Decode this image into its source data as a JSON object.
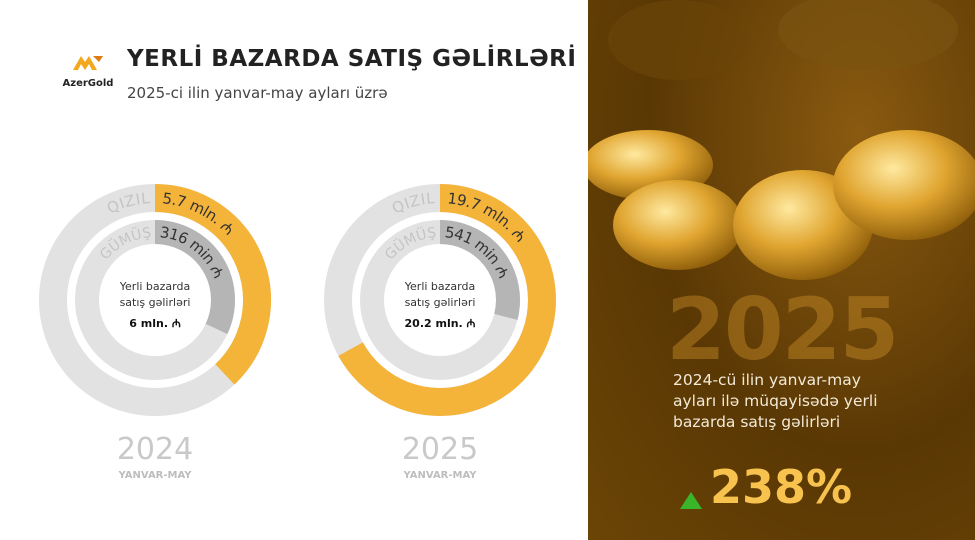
{
  "logo": {
    "text": "AzerGold"
  },
  "header": {
    "title": "YERLİ BAZARDA SATIŞ GƏLİRLƏRİ",
    "subtitle": "2025-ci ilin yanvar-may ayları üzrə"
  },
  "colors": {
    "gold": "#f4b43a",
    "silver": "#b5b5b5",
    "track": "#e2e2e2",
    "up_arrow": "#3ab52a",
    "panel": "#5a3804"
  },
  "chart_data": [
    {
      "type": "pie",
      "variant": "nested-donut",
      "year": "2024",
      "period": "YANVAR-MAY",
      "center_label": "Yerli bazarda satış gəlirləri",
      "total": "6 mln. ₼",
      "series": [
        {
          "name": "QIZIL",
          "label": "5.7 mln. ₼",
          "fill_fraction": 0.38
        },
        {
          "name": "GÜMÜŞ",
          "label": "316 min ₼",
          "fill_fraction": 0.32
        }
      ]
    },
    {
      "type": "pie",
      "variant": "nested-donut",
      "year": "2025",
      "period": "YANVAR-MAY",
      "center_label": "Yerli bazarda satış gəlirləri",
      "total": "20.2 mln. ₼",
      "series": [
        {
          "name": "QIZIL",
          "label": "19.7 mln. ₼",
          "fill_fraction": 0.67
        },
        {
          "name": "GÜMÜŞ",
          "label": "541 min ₼",
          "fill_fraction": 0.29
        }
      ]
    }
  ],
  "panel": {
    "big_year": "2025",
    "description": "2024-cü ilin yanvar-may ayları ilə müqayisədə yerli bazarda satış gəlirləri",
    "change": "238%",
    "change_icon": "triangle-up-icon"
  }
}
